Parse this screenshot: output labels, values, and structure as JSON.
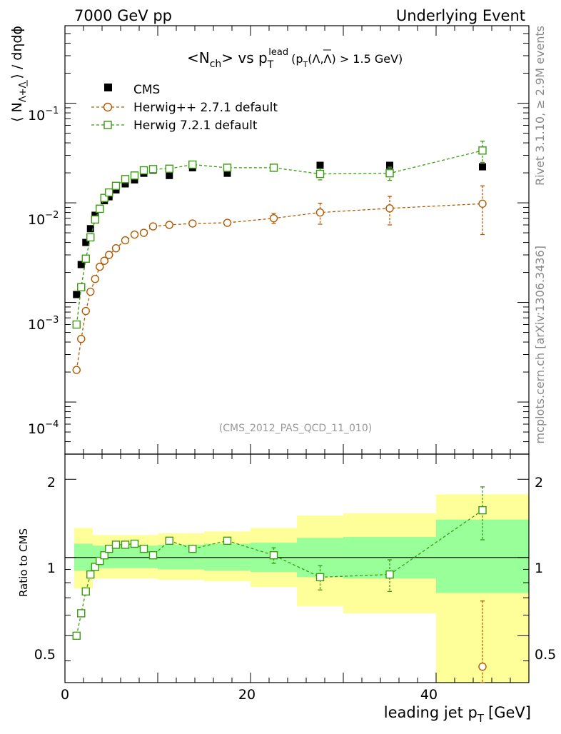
{
  "header": {
    "left": "7000 GeV pp",
    "right": "Underlying Event"
  },
  "side_labels": {
    "rivet": "Rivet 3.1.10, ≥ 2.9M events",
    "mcplots": "mcplots.cern.ch [arXiv:1306.3436]"
  },
  "reference": "(CMS_2012_PAS_QCD_11_010)",
  "title": {
    "main": "<N",
    "sub_ch": "ch",
    "vs": "> vs p",
    "sub_T": "T",
    "sup_lead": "lead",
    "cut_pre": "(p",
    "cut_sub": "T",
    "cut_post": "(Λ,Λ) > 1.5 GeV)"
  },
  "ylabel_main": {
    "pre": "⟨ N",
    "sub": "Λ+Λ",
    "post": "⟩ / dηdϕ"
  },
  "ylabel_ratio": "Ratio to CMS",
  "xlabel": {
    "pre": "leading jet p",
    "sub": "T",
    "post": "[GeV]"
  },
  "legend": [
    {
      "label": "CMS",
      "color": "#000000",
      "marker": "filled-square"
    },
    {
      "label": "Herwig++ 2.7.1 default",
      "color": "#b35900",
      "marker": "open-circle"
    },
    {
      "label": "Herwig 7.2.1 default",
      "color": "#3a9a10",
      "marker": "open-square"
    }
  ],
  "main_axis": {
    "ytick_labels": [
      {
        "base": "10",
        "exp": "−4",
        "value": 0.0001
      },
      {
        "base": "10",
        "exp": "−3",
        "value": 0.001
      },
      {
        "base": "10",
        "exp": "−2",
        "value": 0.01
      },
      {
        "base": "10",
        "exp": "−1",
        "value": 0.1
      }
    ]
  },
  "ratio_axis": {
    "ytick_labels": [
      "0.5",
      "1",
      "2"
    ]
  },
  "x_axis": {
    "tick_labels": [
      "0",
      "20",
      "40"
    ]
  },
  "chart_data": [
    {
      "type": "scatter",
      "panel": "main",
      "title": "<Nch> vs pT lead (pT(Λ,Λ) > 1.5 GeV)",
      "xlabel": "leading jet pT [GeV]",
      "ylabel": "⟨ N Λ+Λ ⟩ / dηdϕ",
      "xlim": [
        0,
        50
      ],
      "ylim": [
        3e-05,
        0.6
      ],
      "yscale": "log",
      "series": [
        {
          "name": "CMS",
          "x": [
            1.25,
            1.75,
            2.25,
            2.75,
            3.25,
            3.75,
            4.25,
            4.75,
            5.5,
            6.5,
            7.5,
            8.5,
            9.5,
            11.25,
            13.75,
            17.5,
            22.5,
            27.5,
            35,
            45
          ],
          "y": [
            0.0012,
            0.0024,
            0.004,
            0.0055,
            0.0075,
            0.0088,
            0.0105,
            0.0115,
            0.0135,
            0.0155,
            0.017,
            0.0198,
            0.0213,
            0.0188,
            0.0225,
            0.0198,
            0.0225,
            0.0238,
            0.0238,
            0.023
          ]
        },
        {
          "name": "Herwig++ 2.7.1 default",
          "x": [
            1.25,
            1.75,
            2.25,
            2.75,
            3.25,
            3.75,
            4.25,
            4.75,
            5.5,
            6.5,
            7.5,
            8.5,
            9.5,
            11.25,
            13.75,
            17.5,
            22.5,
            27.5,
            35,
            45
          ],
          "y": [
            0.00021,
            0.00043,
            0.00082,
            0.00128,
            0.00172,
            0.00228,
            0.00262,
            0.003,
            0.0035,
            0.0042,
            0.0048,
            0.005,
            0.0058,
            0.006,
            0.0062,
            0.0063,
            0.007,
            0.008,
            0.0088,
            0.0098
          ],
          "yerr": [
            0,
            0,
            0,
            0,
            0,
            0,
            0,
            0,
            0,
            0,
            0,
            0,
            0,
            0,
            0,
            0,
            0.0008,
            0.0019,
            0.0028,
            0.005
          ]
        },
        {
          "name": "Herwig 7.2.1 default",
          "x": [
            1.25,
            1.75,
            2.25,
            2.75,
            3.25,
            3.75,
            4.25,
            4.75,
            5.5,
            6.5,
            7.5,
            8.5,
            9.5,
            11.25,
            13.75,
            17.5,
            22.5,
            27.5,
            35,
            45
          ],
          "y": [
            0.0006,
            0.00142,
            0.00275,
            0.0045,
            0.0068,
            0.0087,
            0.0112,
            0.0127,
            0.0148,
            0.0173,
            0.0188,
            0.0212,
            0.0218,
            0.022,
            0.0242,
            0.0225,
            0.0225,
            0.0195,
            0.0198,
            0.0335
          ],
          "yerr": [
            0,
            0,
            0,
            0,
            0,
            0,
            0,
            0,
            0,
            0,
            0,
            0,
            0,
            0,
            0,
            0,
            0.0008,
            0.0025,
            0.003,
            0.008
          ]
        }
      ]
    },
    {
      "type": "scatter",
      "panel": "ratio",
      "xlabel": "leading jet pT [GeV]",
      "ylabel": "Ratio to CMS",
      "xlim": [
        0,
        50
      ],
      "ylim": [
        0.33,
        2.5
      ],
      "yscale": "log",
      "reference_line": 1,
      "bands": {
        "x_edges": [
          1,
          1.5,
          2,
          2.5,
          3,
          3.5,
          4,
          4.5,
          5,
          6,
          7,
          8,
          9,
          10,
          12.5,
          15,
          20,
          25,
          30,
          40,
          50
        ],
        "inner_lo": [
          0.89,
          0.89,
          0.89,
          0.89,
          0.91,
          0.91,
          0.91,
          0.91,
          0.91,
          0.91,
          0.91,
          0.91,
          0.91,
          0.9,
          0.9,
          0.89,
          0.88,
          0.84,
          0.83,
          0.73
        ],
        "inner_hi": [
          1.13,
          1.13,
          1.13,
          1.13,
          1.11,
          1.11,
          1.11,
          1.11,
          1.11,
          1.11,
          1.11,
          1.11,
          1.11,
          1.12,
          1.12,
          1.13,
          1.14,
          1.19,
          1.2,
          1.4
        ],
        "outer_lo": [
          0.76,
          0.76,
          0.76,
          0.76,
          0.83,
          0.83,
          0.83,
          0.83,
          0.83,
          0.83,
          0.83,
          0.83,
          0.83,
          0.82,
          0.82,
          0.81,
          0.77,
          0.65,
          0.61,
          0.32
        ],
        "outer_hi": [
          1.3,
          1.3,
          1.3,
          1.3,
          1.22,
          1.22,
          1.22,
          1.22,
          1.22,
          1.22,
          1.22,
          1.22,
          1.22,
          1.24,
          1.24,
          1.26,
          1.3,
          1.45,
          1.48,
          1.75
        ]
      },
      "series": [
        {
          "name": "Herwig++ 2.7.1 default",
          "x": [
            45
          ],
          "y": [
            0.38
          ],
          "yerr": [
            0.3
          ]
        },
        {
          "name": "Herwig 7.2.1 default",
          "x": [
            1.25,
            1.75,
            2.25,
            2.75,
            3.25,
            3.75,
            4.25,
            4.75,
            5.5,
            6.5,
            7.5,
            8.5,
            9.5,
            11.25,
            13.75,
            17.5,
            22.5,
            27.5,
            35,
            45
          ],
          "y": [
            0.5,
            0.61,
            0.74,
            0.86,
            0.92,
            0.97,
            1.02,
            1.08,
            1.12,
            1.12,
            1.13,
            1.08,
            1.02,
            1.16,
            1.08,
            1.16,
            1.02,
            0.84,
            0.86,
            1.52
          ],
          "yerr": [
            0,
            0,
            0,
            0,
            0,
            0,
            0,
            0,
            0,
            0,
            0,
            0,
            0,
            0,
            0,
            0,
            0.07,
            0.09,
            0.12,
            0.35
          ]
        }
      ]
    }
  ]
}
